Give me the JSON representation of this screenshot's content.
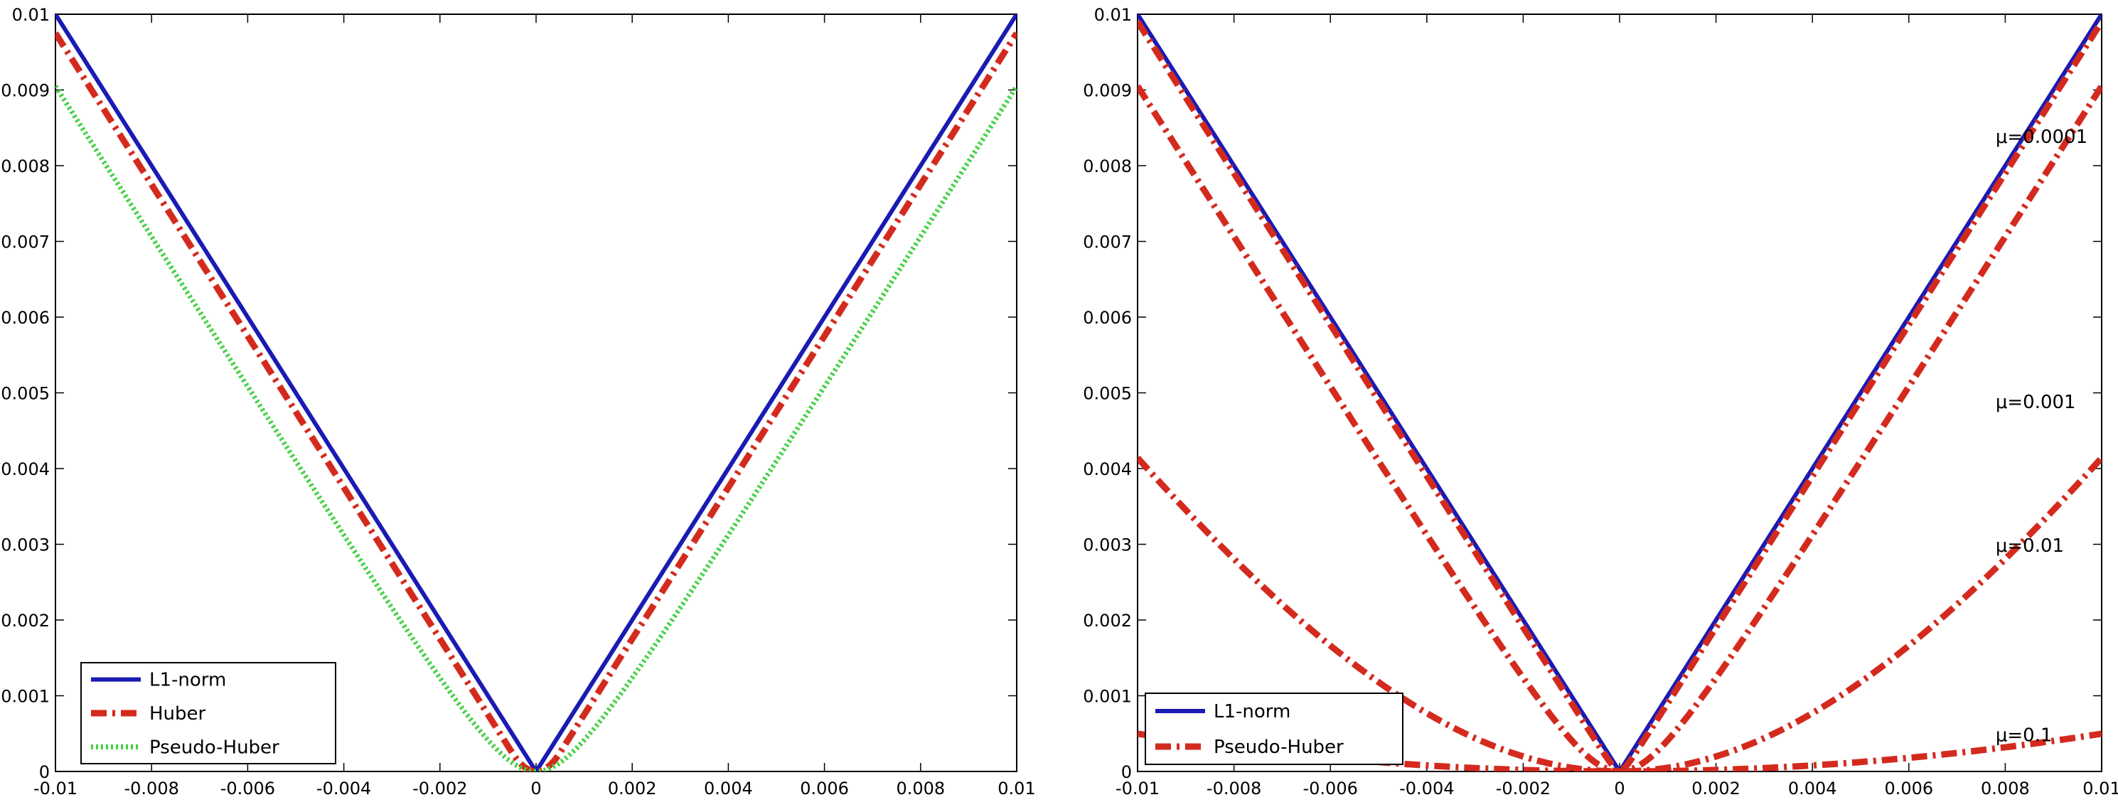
{
  "chart_data": [
    {
      "type": "line",
      "xlim": [
        -0.01,
        0.01
      ],
      "ylim": [
        0,
        0.01
      ],
      "x_ticks": [
        "-0.01",
        "-0.008",
        "-0.006",
        "-0.004",
        "-0.002",
        "0",
        "0.002",
        "0.004",
        "0.006",
        "0.008",
        "0.01"
      ],
      "y_ticks": [
        "0",
        "0.001",
        "0.002",
        "0.003",
        "0.004",
        "0.005",
        "0.006",
        "0.007",
        "0.008",
        "0.009",
        "0.01"
      ],
      "legend_position": "bottom-left",
      "series": [
        {
          "name": "L1-norm",
          "function": "abs",
          "color": "#1a1ab4",
          "style": "solid"
        },
        {
          "name": "Huber",
          "function": "huber",
          "mu": 0.0005,
          "color": "#d42a1e",
          "style": "dashdot"
        },
        {
          "name": "Pseudo-Huber",
          "function": "pseudo_huber",
          "mu": 0.001,
          "color": "#3ed13e",
          "style": "dotted"
        }
      ]
    },
    {
      "type": "line",
      "xlim": [
        -0.01,
        0.01
      ],
      "ylim": [
        0,
        0.01
      ],
      "x_ticks": [
        "-0.01",
        "-0.008",
        "-0.006",
        "-0.004",
        "-0.002",
        "0",
        "0.002",
        "0.004",
        "0.006",
        "0.008",
        "0.01"
      ],
      "y_ticks": [
        "0",
        "0.001",
        "0.002",
        "0.003",
        "0.004",
        "0.005",
        "0.006",
        "0.007",
        "0.008",
        "0.009",
        "0.01"
      ],
      "legend_position": "bottom-left",
      "legend": [
        {
          "name": "L1-norm",
          "color": "#1a1ab4",
          "style": "solid"
        },
        {
          "name": "Pseudo-Huber",
          "color": "#d42a1e",
          "style": "dashdot"
        }
      ],
      "series": [
        {
          "name": "L1-norm",
          "function": "abs",
          "color": "#1a1ab4",
          "style": "solid"
        },
        {
          "name": "Pseudo-Huber μ=0.0001",
          "function": "pseudo_huber",
          "mu": 0.0001,
          "color": "#d42a1e",
          "style": "dashdot"
        },
        {
          "name": "Pseudo-Huber μ=0.001",
          "function": "pseudo_huber",
          "mu": 0.001,
          "color": "#d42a1e",
          "style": "dashdot"
        },
        {
          "name": "Pseudo-Huber μ=0.01",
          "function": "pseudo_huber",
          "mu": 0.01,
          "color": "#d42a1e",
          "style": "dashdot"
        },
        {
          "name": "Pseudo-Huber μ=0.1",
          "function": "pseudo_huber",
          "mu": 0.1,
          "color": "#d42a1e",
          "style": "dashdot"
        }
      ],
      "annotations": [
        {
          "text": "μ=0.0001",
          "x": 0.0078,
          "y": 0.0083
        },
        {
          "text": "μ=0.001",
          "x": 0.0078,
          "y": 0.0048
        },
        {
          "text": "μ=0.01",
          "x": 0.0078,
          "y": 0.0029
        },
        {
          "text": "μ=0.1",
          "x": 0.0078,
          "y": 0.0004
        }
      ]
    }
  ]
}
